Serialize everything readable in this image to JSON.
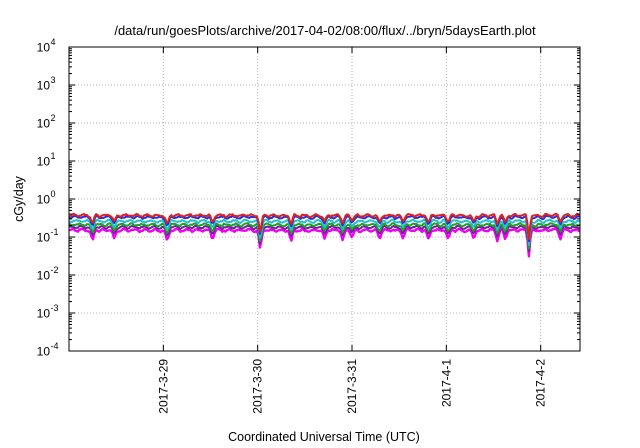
{
  "chart_data": {
    "type": "line",
    "title": "/data/run/goesPlots/archive/2017-04-02/08:00/flux/../bryn/5daysEarth.plot",
    "xlabel": "Coordinated Universal Time (UTC)",
    "ylabel": "cGy/day",
    "yscale": "log",
    "ylim": [
      0.0001,
      10000
    ],
    "y_ticks": [
      {
        "base": "10",
        "exp": "-4",
        "value": 0.0001
      },
      {
        "base": "10",
        "exp": "-3",
        "value": 0.001
      },
      {
        "base": "10",
        "exp": "-2",
        "value": 0.01
      },
      {
        "base": "10",
        "exp": "-1",
        "value": 0.1
      },
      {
        "base": "10",
        "exp": "0",
        "value": 1
      },
      {
        "base": "10",
        "exp": "1",
        "value": 10
      },
      {
        "base": "10",
        "exp": "2",
        "value": 100
      },
      {
        "base": "10",
        "exp": "3",
        "value": 1000
      },
      {
        "base": "10",
        "exp": "4",
        "value": 10000
      }
    ],
    "xlim": [
      "2017-03-28T00:00",
      "2017-04-02T10:00"
    ],
    "x_ticks": [
      {
        "label": "2017-3-29",
        "value": "2017-03-29T00:00"
      },
      {
        "label": "2017-3-30",
        "value": "2017-03-30T00:00"
      },
      {
        "label": "2017-3-31",
        "value": "2017-03-31T00:00"
      },
      {
        "label": "2017-4-1",
        "value": "2017-04-01T00:00"
      },
      {
        "label": "2017-4-2",
        "value": "2017-04-02T00:00"
      }
    ],
    "grid": true,
    "legend": "none",
    "series": [
      {
        "color": "#e0201f",
        "base": 0.37
      },
      {
        "color": "#2030e0",
        "base": 0.33
      },
      {
        "color": "#20c0d0",
        "base": 0.26
      },
      {
        "color": "#20a020",
        "base": 0.21
      },
      {
        "color": "#7020a0",
        "base": 0.18
      },
      {
        "color": "#f000f0",
        "base": 0.15
      }
    ],
    "dips": [
      {
        "x": "2017-03-28T06:00",
        "y": 0.075
      },
      {
        "x": "2017-03-28T11:30",
        "y": 0.09
      },
      {
        "x": "2017-03-29T01:00",
        "y": 0.07
      },
      {
        "x": "2017-03-29T12:30",
        "y": 0.08
      },
      {
        "x": "2017-03-30T00:40",
        "y": 0.035
      },
      {
        "x": "2017-03-30T08:30",
        "y": 0.07
      },
      {
        "x": "2017-03-30T17:00",
        "y": 0.09
      },
      {
        "x": "2017-03-30T21:40",
        "y": 0.075
      },
      {
        "x": "2017-03-31T00:00",
        "y": 0.09
      },
      {
        "x": "2017-03-31T07:00",
        "y": 0.08
      },
      {
        "x": "2017-03-31T13:00",
        "y": 0.085
      },
      {
        "x": "2017-03-31T19:30",
        "y": 0.08
      },
      {
        "x": "2017-04-01T00:30",
        "y": 0.08
      },
      {
        "x": "2017-04-01T07:00",
        "y": 0.085
      },
      {
        "x": "2017-04-01T13:00",
        "y": 0.075
      },
      {
        "x": "2017-04-01T15:00",
        "y": 0.08
      },
      {
        "x": "2017-04-01T21:00",
        "y": 0.031
      },
      {
        "x": "2017-04-02T05:00",
        "y": 0.085
      }
    ]
  }
}
